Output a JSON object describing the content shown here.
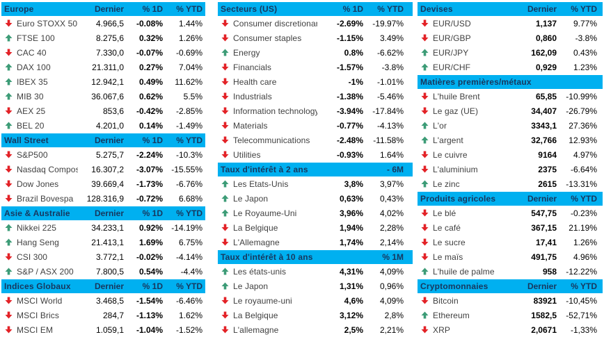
{
  "colors": {
    "header_bg": "#00b0f0",
    "header_text": "#17375e",
    "up_arrow": "#3d9c77",
    "down_arrow": "#e32227",
    "row_label": "#3f3f3f",
    "row_value": "#000000"
  },
  "columns": [
    {
      "sections": [
        {
          "title": "Europe",
          "header_cells": [
            "Dernier",
            "% 1D",
            "% YTD"
          ],
          "bold_col": 1,
          "rows": [
            {
              "dir": "down",
              "name": "Euro STOXX 50",
              "values": [
                "4.966,5",
                "-0.08%",
                "1.44%"
              ]
            },
            {
              "dir": "up",
              "name": "FTSE 100",
              "values": [
                "8.275,6",
                "0.32%",
                "1.26%"
              ]
            },
            {
              "dir": "down",
              "name": "CAC 40",
              "values": [
                "7.330,0",
                "-0.07%",
                "-0.69%"
              ]
            },
            {
              "dir": "up",
              "name": "DAX 100",
              "values": [
                "21.311,0",
                "0.27%",
                "7.04%"
              ]
            },
            {
              "dir": "up",
              "name": "IBEX 35",
              "values": [
                "12.942,1",
                "0.49%",
                "11.62%"
              ]
            },
            {
              "dir": "up",
              "name": "MIB 30",
              "values": [
                "36.067,6",
                "0.62%",
                "5.5%"
              ]
            },
            {
              "dir": "down",
              "name": "AEX 25",
              "values": [
                "853,6",
                "-0.42%",
                "-2.85%"
              ]
            },
            {
              "dir": "up",
              "name": "BEL 20",
              "values": [
                "4.201,0",
                "0.14%",
                "-1.49%"
              ]
            }
          ]
        },
        {
          "title": "Wall Street",
          "header_cells": [
            "Dernier",
            "% 1D",
            "% YTD"
          ],
          "bold_col": 1,
          "rows": [
            {
              "dir": "down",
              "name": "S&P500",
              "values": [
                "5.275,7",
                "-2.24%",
                "-10.3%"
              ]
            },
            {
              "dir": "down",
              "name": "Nasdaq Composite",
              "values": [
                "16.307,2",
                "-3.07%",
                "-15.55%"
              ]
            },
            {
              "dir": "down",
              "name": "Dow Jones",
              "values": [
                "39.669,4",
                "-1.73%",
                "-6.76%"
              ]
            },
            {
              "dir": "down",
              "name": "Brazil Bovespa",
              "values": [
                "128.316,9",
                "-0.72%",
                "6.68%"
              ]
            }
          ]
        },
        {
          "title": "Asie & Australie",
          "header_cells": [
            "Dernier",
            "% 1D",
            "% YTD"
          ],
          "bold_col": 1,
          "rows": [
            {
              "dir": "up",
              "name": "Nikkei 225",
              "values": [
                "34.233,1",
                "0.92%",
                "-14.19%"
              ]
            },
            {
              "dir": "up",
              "name": "Hang Seng",
              "values": [
                "21.413,1",
                "1.69%",
                "6.75%"
              ]
            },
            {
              "dir": "down",
              "name": "CSI 300",
              "values": [
                "3.772,1",
                "-0.02%",
                "-4.14%"
              ]
            },
            {
              "dir": "up",
              "name": "S&P / ASX 200",
              "values": [
                "7.800,5",
                "0.54%",
                "-4.4%"
              ]
            }
          ]
        },
        {
          "title": "Indices Globaux",
          "header_cells": [
            "Dernier",
            "% 1D",
            "% YTD"
          ],
          "bold_col": 1,
          "rows": [
            {
              "dir": "down",
              "name": "MSCI World",
              "values": [
                "3.468,5",
                "-1.54%",
                "-6.46%"
              ]
            },
            {
              "dir": "down",
              "name": "MSCI Brics",
              "values": [
                "284,7",
                "-1.13%",
                "1.62%"
              ]
            },
            {
              "dir": "down",
              "name": "MSCI EM",
              "values": [
                "1.059,1",
                "-1.04%",
                "-1.52%"
              ]
            }
          ]
        }
      ]
    },
    {
      "sections": [
        {
          "title": "Secteurs (US)",
          "header_cells": [
            "% 1D",
            "% YTD"
          ],
          "bold_col": 0,
          "rows": [
            {
              "dir": "down",
              "name": "Consumer discretionary",
              "values": [
                "-2.69%",
                "-19.97%"
              ]
            },
            {
              "dir": "down",
              "name": "Consumer staples",
              "values": [
                "-1.15%",
                "3.49%"
              ]
            },
            {
              "dir": "up",
              "name": "Energy",
              "values": [
                "0.8%",
                "-6.62%"
              ]
            },
            {
              "dir": "down",
              "name": "Financials",
              "values": [
                "-1.57%",
                "-3.8%"
              ]
            },
            {
              "dir": "down",
              "name": "Health care",
              "values": [
                "-1%",
                "-1.01%"
              ]
            },
            {
              "dir": "down",
              "name": "Industrials",
              "values": [
                "-1.38%",
                "-5.46%"
              ]
            },
            {
              "dir": "down",
              "name": "Information technology",
              "values": [
                "-3.94%",
                "-17.84%"
              ]
            },
            {
              "dir": "down",
              "name": "Materials",
              "values": [
                "-0.77%",
                "-4.13%"
              ]
            },
            {
              "dir": "down",
              "name": "Telecommunications",
              "values": [
                "-2.48%",
                "-11.58%"
              ]
            },
            {
              "dir": "down",
              "name": "Utilities",
              "values": [
                "-0.93%",
                "1.64%"
              ]
            }
          ]
        },
        {
          "title": "Taux d'intérêt à 2 ans",
          "header_cells": [
            "",
            "- 6M"
          ],
          "bold_col": 0,
          "rows": [
            {
              "dir": "up",
              "name": "Les Etats-Unis",
              "values": [
                "3,8%",
                "3,97%"
              ]
            },
            {
              "dir": "up",
              "name": "Le Japon",
              "values": [
                "0,63%",
                "0,43%"
              ]
            },
            {
              "dir": "up",
              "name": "Le Royaume-Uni",
              "values": [
                "3,96%",
                "4,02%"
              ]
            },
            {
              "dir": "down",
              "name": "La Belgique",
              "values": [
                "1,94%",
                "2,28%"
              ]
            },
            {
              "dir": "down",
              "name": "L'Allemagne",
              "values": [
                "1,74%",
                "2,14%"
              ]
            }
          ]
        },
        {
          "title": "Taux d'intérêt à 10 ans",
          "header_cells": [
            "",
            "% 1M"
          ],
          "bold_col": 0,
          "rows": [
            {
              "dir": "up",
              "name": "Les états-unis",
              "values": [
                "4,31%",
                "4,09%"
              ]
            },
            {
              "dir": "up",
              "name": "Le Japon",
              "values": [
                "1,31%",
                "0,96%"
              ]
            },
            {
              "dir": "down",
              "name": "Le royaume-uni",
              "values": [
                "4,6%",
                "4,09%"
              ]
            },
            {
              "dir": "down",
              "name": "La Belgique",
              "values": [
                "3,12%",
                "2,8%"
              ]
            },
            {
              "dir": "down",
              "name": "L'allemagne",
              "values": [
                "2,5%",
                "2,21%"
              ]
            }
          ]
        }
      ]
    },
    {
      "sections": [
        {
          "title": "Devises",
          "header_cells": [
            "Dernier",
            "% YTD"
          ],
          "bold_col": 0,
          "rows": [
            {
              "dir": "down",
              "name": "EUR/USD",
              "values": [
                "1,137",
                "9.77%"
              ]
            },
            {
              "dir": "down",
              "name": "EUR/GBP",
              "values": [
                "0,860",
                "-3.8%"
              ]
            },
            {
              "dir": "up",
              "name": "EUR/JPY",
              "values": [
                "162,09",
                "0.43%"
              ]
            },
            {
              "dir": "up",
              "name": "EUR/CHF",
              "values": [
                "0,929",
                "1.23%"
              ]
            }
          ]
        },
        {
          "title": "Matières premières/métaux",
          "header_cells": [
            "",
            "% 3M"
          ],
          "bold_col": 0,
          "rows": [
            {
              "dir": "down",
              "name": "L'huile Brent",
              "values": [
                "65,85",
                "-10.99%"
              ]
            },
            {
              "dir": "down",
              "name": "Le gaz (UE)",
              "values": [
                "34,407",
                "-26.79%"
              ]
            },
            {
              "dir": "up",
              "name": "L'or",
              "values": [
                "3343,1",
                "27.36%"
              ]
            },
            {
              "dir": "up",
              "name": "L'argent",
              "values": [
                "32,766",
                "12.93%"
              ]
            },
            {
              "dir": "down",
              "name": "Le cuivre",
              "values": [
                "9164",
                "4.97%"
              ]
            },
            {
              "dir": "down",
              "name": "L'aluminium",
              "values": [
                "2375",
                "-6.64%"
              ]
            },
            {
              "dir": "up",
              "name": "Le zinc",
              "values": [
                "2615",
                "-13.31%"
              ]
            }
          ]
        },
        {
          "title": "Produits agricoles",
          "header_cells": [
            "Dernier",
            "% YTD"
          ],
          "bold_col": 0,
          "rows": [
            {
              "dir": "down",
              "name": "Le blé",
              "values": [
                "547,75",
                "-0.23%"
              ]
            },
            {
              "dir": "down",
              "name": "Le café",
              "values": [
                "367,15",
                "21.19%"
              ]
            },
            {
              "dir": "down",
              "name": "Le sucre",
              "values": [
                "17,41",
                "1.26%"
              ]
            },
            {
              "dir": "down",
              "name": "Le maïs",
              "values": [
                "491,75",
                "4.96%"
              ]
            },
            {
              "dir": "up",
              "name": "L'huile de palme",
              "values": [
                "958",
                "-12.22%"
              ]
            }
          ]
        },
        {
          "title": "Cryptomonnaies",
          "header_cells": [
            "Dernier",
            "% YTD"
          ],
          "bold_col": 0,
          "rows": [
            {
              "dir": "down",
              "name": "Bitcoin",
              "values": [
                "83921",
                "-10,45%"
              ]
            },
            {
              "dir": "up",
              "name": "Ethereum",
              "values": [
                "1582,5",
                "-52,71%"
              ]
            },
            {
              "dir": "down",
              "name": "XRP",
              "values": [
                "2,0671",
                "-1,33%"
              ]
            }
          ]
        }
      ]
    }
  ]
}
